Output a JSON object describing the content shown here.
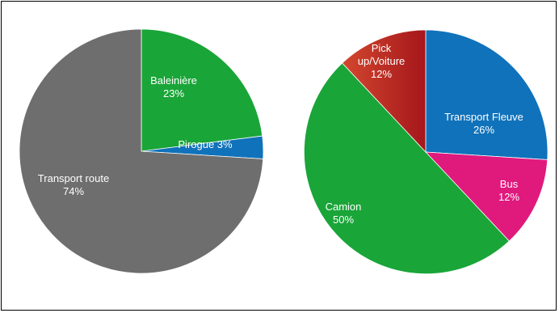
{
  "chart_data": [
    {
      "type": "pie",
      "title": "",
      "slices": [
        {
          "name": "Baleinière",
          "label_lines": [
            "Baleinière",
            "23%"
          ],
          "value": 23,
          "color": "#1aa538"
        },
        {
          "name": "Pirogue",
          "label_lines": [
            "Pirogue  3%"
          ],
          "value": 3,
          "color": "#1072ba"
        },
        {
          "name": "Transport route",
          "label_lines": [
            "Transport route",
            "74%"
          ],
          "value": 74,
          "color": "#6e6e6e"
        }
      ]
    },
    {
      "type": "pie",
      "title": "",
      "slices": [
        {
          "name": "Transport Fleuve",
          "label_lines": [
            "Transport Fleuve",
            "26%"
          ],
          "value": 26,
          "color": "#1072ba"
        },
        {
          "name": "Bus",
          "label_lines": [
            "Bus",
            "12%"
          ],
          "value": 12,
          "color": "#e0197d"
        },
        {
          "name": "Camion",
          "label_lines": [
            "Camion",
            "50%"
          ],
          "value": 50,
          "color": "#1aa538"
        },
        {
          "name": "Pick up/Voiture",
          "label_lines": [
            "Pick",
            "up/Voiture",
            "12%"
          ],
          "value": 12,
          "color": "#b8271f"
        }
      ]
    }
  ]
}
